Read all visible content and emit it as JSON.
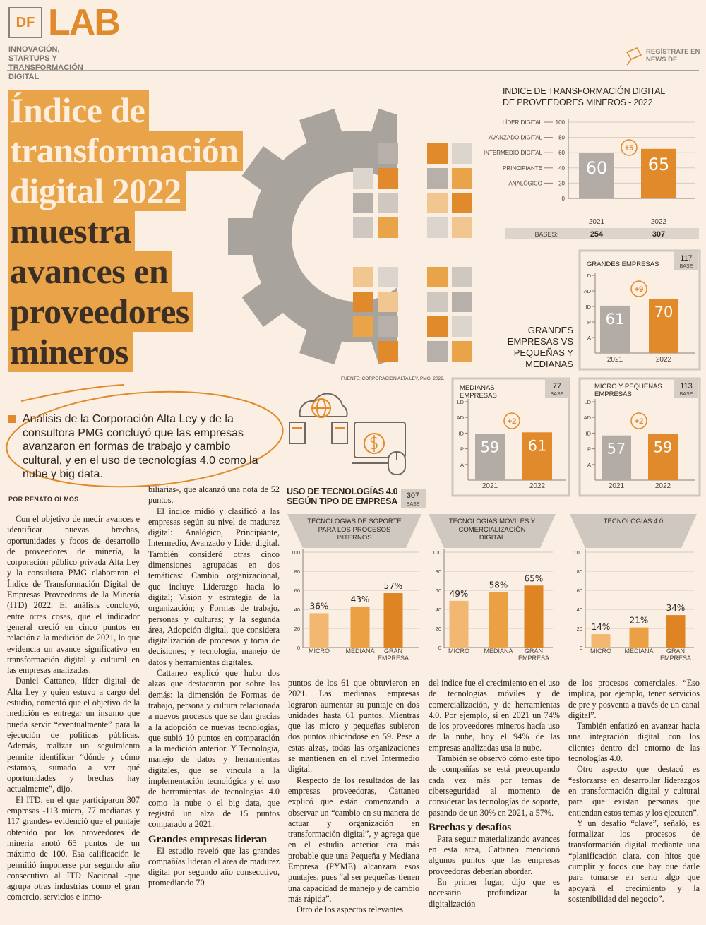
{
  "header": {
    "logo_left": "DF",
    "logo_right": "LAB",
    "tagline": "INNOVACIÓN, STARTUPS Y TRANSFORMACIÓN DIGITAL",
    "register": "REGÍSTRATE EN NEWS DF"
  },
  "headline": {
    "highlight_lines": [
      "Índice de",
      "transformación",
      "digital 2022"
    ],
    "lines": [
      "muestra",
      "avances en",
      "proveedores",
      "mineros"
    ]
  },
  "lead": "Análisis de la Corporación Alta Ley y de la consultora PMG concluyó que las empresas avanzaron en formas de trabajo y cambio cultural, y en el uso de tecnologías 4.0 como la nube y big data.",
  "byline": "POR RENATO OLMOS",
  "source": "FUENTE: CORPORACIÓN ALTA LEY, PMG, 2022.",
  "comparison_label": "GRANDES EMPRESAS VS PEQUEÑAS Y MEDIANAS",
  "usage": {
    "title": "USO DE TECNOLOGÍAS 4.0 SEGÚN TIPO DE EMPRESA",
    "base": 307,
    "base_label": "BASE"
  },
  "chart_data": [
    {
      "type": "bar",
      "title": "INDICE DE TRANSFORMACIÓN DIGITAL DE PROVEEDORES MINEROS - 2022",
      "categories": [
        "2021",
        "2022"
      ],
      "values": [
        60,
        65
      ],
      "colors": [
        "#b3aca6",
        "#e08a2b"
      ],
      "ylim": [
        0,
        100
      ],
      "yticks": [
        0,
        20,
        40,
        60,
        80,
        100
      ],
      "grid": true,
      "level_labels": [
        {
          "value": 100,
          "label": "LÍDER DIGITAL"
        },
        {
          "value": 80,
          "label": "AVANZADO DIGITAL"
        },
        {
          "value": 60,
          "label": "INTERMEDIO DIGITAL"
        },
        {
          "value": 40,
          "label": "PRINCIPIANTE"
        },
        {
          "value": 20,
          "label": "ANALÓGICO"
        }
      ],
      "change_label": "+5",
      "base_label": "BASES:",
      "bases": [
        254,
        307
      ]
    },
    {
      "type": "bar",
      "title": "GRANDES EMPRESAS",
      "base": 117,
      "base_label": "BASE",
      "categories": [
        "2021",
        "2022"
      ],
      "values": [
        61,
        70
      ],
      "colors": [
        "#b3aca6",
        "#e08a2b"
      ],
      "ylim": [
        0,
        100
      ],
      "yticks": [
        {
          "value": 20,
          "label": "A"
        },
        {
          "value": 40,
          "label": "P"
        },
        {
          "value": 60,
          "label": "ID"
        },
        {
          "value": 80,
          "label": "AD"
        },
        {
          "value": 100,
          "label": "LD"
        }
      ],
      "grid": false,
      "change_label": "+9"
    },
    {
      "type": "bar",
      "title": "MEDIANAS EMPRESAS",
      "base": 77,
      "base_label": "BASE",
      "categories": [
        "2021",
        "2022"
      ],
      "values": [
        59,
        61
      ],
      "colors": [
        "#b3aca6",
        "#e08a2b"
      ],
      "ylim": [
        0,
        100
      ],
      "yticks": [
        {
          "value": 20,
          "label": "A"
        },
        {
          "value": 40,
          "label": "P"
        },
        {
          "value": 60,
          "label": "ID"
        },
        {
          "value": 80,
          "label": "AD"
        },
        {
          "value": 100,
          "label": "LD"
        }
      ],
      "grid": false,
      "change_label": "+2"
    },
    {
      "type": "bar",
      "title": "MICRO Y PEQUEÑAS EMPRESAS",
      "base": 113,
      "base_label": "BASE",
      "categories": [
        "2021",
        "2022"
      ],
      "values": [
        57,
        59
      ],
      "colors": [
        "#b3aca6",
        "#e08a2b"
      ],
      "ylim": [
        0,
        100
      ],
      "yticks": [
        {
          "value": 20,
          "label": "A"
        },
        {
          "value": 40,
          "label": "P"
        },
        {
          "value": 60,
          "label": "ID"
        },
        {
          "value": 80,
          "label": "AD"
        },
        {
          "value": 100,
          "label": "LD"
        }
      ],
      "grid": false,
      "change_label": "+2"
    },
    {
      "type": "bar",
      "title": "TECNOLOGÍAS DE SOPORTE PARA LOS PROCESOS INTERNOS",
      "categories": [
        "MICRO",
        "MEDIANA",
        "GRAN EMPRESA"
      ],
      "values": [
        36,
        43,
        57
      ],
      "value_labels": [
        "36%",
        "43%",
        "57%"
      ],
      "colors": [
        "#f2b872",
        "#eba043",
        "#de8423"
      ],
      "ylim": [
        0,
        100
      ],
      "yticks": [
        0,
        20,
        40,
        60,
        80,
        100
      ],
      "grid": true
    },
    {
      "type": "bar",
      "title": "TECNOLOGÍAS MÓVILES Y COMERCIALIZACIÓN DIGITAL",
      "categories": [
        "MICRO",
        "MEDIANA",
        "GRAN EMPRESA"
      ],
      "values": [
        49,
        58,
        65
      ],
      "value_labels": [
        "49%",
        "58%",
        "65%"
      ],
      "colors": [
        "#f2b872",
        "#eba043",
        "#de8423"
      ],
      "ylim": [
        0,
        100
      ],
      "yticks": [
        0,
        20,
        40,
        60,
        80,
        100
      ],
      "grid": true
    },
    {
      "type": "bar",
      "title": "TECNOLOGÍAS 4.0",
      "categories": [
        "MICRO",
        "MEDIANA",
        "GRAN EMPRESA"
      ],
      "values": [
        14,
        21,
        34
      ],
      "value_labels": [
        "14%",
        "21%",
        "34%"
      ],
      "colors": [
        "#f2b872",
        "#eba043",
        "#de8423"
      ],
      "ylim": [
        0,
        100
      ],
      "yticks": [
        0,
        20,
        40,
        60,
        80,
        100
      ],
      "grid": true
    }
  ],
  "article": {
    "columns": [
      [
        {
          "p": "Con el objetivo de medir avances e identificar nuevas brechas, oportunidades y focos de desarrollo de proveedores de minería, la corporación público privada Alta Ley y la consultora PMG elaboraron el Índice de Transformación Digital de Empresas Proveedoras de la Minería (ITD) 2022. El análisis concluyó, entre otras cosas, que el indicador general creció en cinco puntos en relación a la medición de 2021, lo que evidencia un avance significativo en transformación digital y cultural en las empresas analizadas."
        },
        {
          "p": "Daniel Cattaneo, líder digital de Alta Ley y quien estuvo a cargo del estudio, comentó que el objetivo de la medición es entregar un insumo que pueda servir “eventualmente” para la ejecución de políticas públicas. Además, realizar un seguimiento permite identificar “dónde y cómo estamos, sumado a ver qué oportunidades y brechas hay actualmente”, dijo."
        },
        {
          "p": "El ITD, en el que participaron 307 empresas -113 micro, 77 medianas y 117 grandes- evidenció que el puntaje obtenido por los proveedores de minería anotó 65 puntos de un máximo de 100. Esa calificación le permitió imponerse por segundo año consecutivo al ITD Nacional -que agrupa otras industrias como el gran comercio, servicios e inmo-"
        }
      ],
      [
        {
          "p": "biliarias-, que alcanzó una nota de 52 puntos."
        },
        {
          "p": "El índice midió y clasificó a las empresas según su nivel de madurez digital: Analógico, Principiante, Intermedio, Avanzado y Líder digital. También consideró otras cinco dimensiones agrupadas en dos temáticas: Cambio organizacional, que incluye Liderazgo hacia lo digital; Visión y estrategia de la organización; y Formas de trabajo, personas y culturas; y la segunda área, Adopción digital, que considera digitalización de procesos y toma de decisiones; y tecnología, manejo de datos y herramientas digitales."
        },
        {
          "p": "Cattaneo explicó que hubo dos alzas que destacaron por sobre las demás: la dimensión de Formas de trabajo, persona y cultura relacionada a nuevos procesos que se dan gracias a la adopción de nuevas tecnologías, que subió 10 puntos en comparación a la medición anterior. Y Tecnología, manejo de datos y herramientas digitales, que se vincula a la implementación tecnológica y el uso de herramientas de tecnologías 4.0 como la nube o el big data, que registró un alza de 15 puntos comparado a 2021."
        },
        {
          "h": "Grandes empresas lideran"
        },
        {
          "p": "El estudio reveló que las grandes compañías lideran el área de madurez digital por segundo año consecutivo, promediando 70"
        }
      ],
      [
        {
          "p": "puntos de los 61 que obtuvieron en 2021. Las medianas empresas lograron aumentar su puntaje en dos unidades hasta 61 puntos. Mientras que las micro y pequeñas subieron dos puntos ubicándose en 59. Pese a estas alzas, todas las organizaciones se mantienen en el nivel Intermedio digital."
        },
        {
          "p": "Respecto de los resultados de las empresas proveedoras, Cattaneo explicó que están comenzando a observar un “cambio en su manera de actuar y organización en transformación digital”, y agrega que en el estudio anterior era más probable que una Pequeña y Mediana Empresa (PYME) alcanzara esos puntajes, pues “al ser pequeñas tienen una capacidad de manejo y de cambio más rápida”."
        },
        {
          "p": "Otro de los aspectos relevantes"
        }
      ],
      [
        {
          "p": "del índice fue el crecimiento en el uso de tecnologías móviles y de comercialización, y de herramientas 4.0. Por ejemplo, si en 2021 un 74% de los proveedores mineros hacía uso de la nube, hoy el 94% de las empresas analizadas usa la nube."
        },
        {
          "p": "También se observó cómo este tipo de compañías se está preocupando cada vez más por temas de ciberseguridad al momento de considerar las tecnologías de soporte, pasando de un 30% en 2021, a 57%."
        },
        {
          "h": "Brechas y desafíos"
        },
        {
          "p": "Para seguir materializando avances en esta área, Cattaneo mencionó algunos puntos que las empresas proveedoras deberían abordar."
        },
        {
          "p": "En primer lugar, dijo que es necesario profundizar la digitalización"
        }
      ],
      [
        {
          "p": "de los procesos comerciales. “Eso implica, por ejemplo, tener servicios de pre y posventa a través de un canal digital”."
        },
        {
          "p": "También enfatizó en avanzar hacia una integración digital con los clientes dentro del entorno de las tecnologías 4.0."
        },
        {
          "p": "Otro aspecto que destacó es “esforzarse en desarrollar liderazgos en transformación digital y cultural para que existan personas que entiendan estos temas y los ejecuten”."
        },
        {
          "p": "Y un desafío “clave”, señaló, es formalizar los procesos de transformación digital mediante una “planificación clara, con hitos que cumplir y focos que hay que darle para tomarse en serio algo que apoyará el crecimiento y la sostenibilidad del negocio”."
        }
      ]
    ]
  }
}
